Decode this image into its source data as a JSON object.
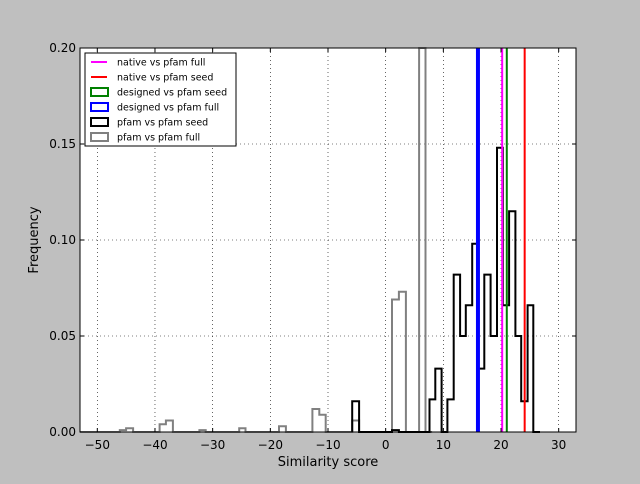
{
  "chart_data": {
    "type": "histogram",
    "xlabel": "Similarity score",
    "ylabel": "Frequency",
    "xlim": [
      -53,
      33
    ],
    "ylim": [
      0,
      0.2
    ],
    "xticks": [
      -50,
      -40,
      -30,
      -20,
      -10,
      0,
      10,
      20,
      30
    ],
    "xtick_labels": [
      "−50",
      "−40",
      "−30",
      "−20",
      "−10",
      "0",
      "10",
      "20",
      "30"
    ],
    "yticks": [
      0,
      0.05,
      0.1,
      0.15,
      0.2
    ],
    "ytick_labels": [
      "0.00",
      "0.05",
      "0.10",
      "0.15",
      "0.20"
    ],
    "grid": true,
    "legend_position": "top-left",
    "legend": [
      {
        "label": "native vs pfam full",
        "color": "#ff00ff",
        "kind": "line"
      },
      {
        "label": "native vs pfam seed",
        "color": "#ff0000",
        "kind": "line"
      },
      {
        "label": "designed vs pfam seed",
        "color": "#008000",
        "kind": "box"
      },
      {
        "label": "designed vs pfam full",
        "color": "#0000ff",
        "kind": "box"
      },
      {
        "label": "pfam vs pfam seed",
        "color": "#000000",
        "kind": "box"
      },
      {
        "label": "pfam vs pfam full",
        "color": "#808080",
        "kind": "box"
      }
    ],
    "series": [
      {
        "name": "pfam vs pfam full",
        "color": "#808080",
        "bin_width": 1.15,
        "bins": [
          [
            -53.0,
            0.0
          ],
          [
            -46.1,
            0.001
          ],
          [
            -45.0,
            0.002
          ],
          [
            -43.8,
            0.0
          ],
          [
            -39.2,
            0.004
          ],
          [
            -38.1,
            0.006
          ],
          [
            -36.9,
            0.0
          ],
          [
            -32.3,
            0.001
          ],
          [
            -31.2,
            0.0
          ],
          [
            -25.4,
            0.002
          ],
          [
            -24.3,
            0.0
          ],
          [
            -18.5,
            0.003
          ],
          [
            -17.3,
            0.0
          ],
          [
            -12.7,
            0.012
          ],
          [
            -11.5,
            0.009
          ],
          [
            -10.4,
            0.0
          ],
          [
            -5.8,
            0.006
          ],
          [
            -4.6,
            0.0
          ],
          [
            1.1,
            0.069
          ],
          [
            2.3,
            0.073
          ],
          [
            3.5,
            0.0
          ],
          [
            5.8,
            0.2
          ],
          [
            6.9,
            0.0
          ]
        ]
      },
      {
        "name": "pfam vs pfam seed",
        "color": "#000000",
        "bin_width": 1.15,
        "bins": [
          [
            -5.8,
            0.016
          ],
          [
            -4.6,
            0.0
          ],
          [
            1.1,
            0.001
          ],
          [
            2.3,
            0.0
          ],
          [
            7.6,
            0.017
          ],
          [
            8.6,
            0.033
          ],
          [
            9.7,
            0.0
          ],
          [
            10.7,
            0.017
          ],
          [
            11.8,
            0.082
          ],
          [
            12.9,
            0.05
          ],
          [
            13.9,
            0.066
          ],
          [
            15.0,
            0.098
          ],
          [
            16.1,
            0.033
          ],
          [
            17.1,
            0.082
          ],
          [
            18.2,
            0.05
          ],
          [
            19.3,
            0.148
          ],
          [
            20.3,
            0.066
          ],
          [
            21.4,
            0.115
          ],
          [
            22.5,
            0.05
          ],
          [
            23.5,
            0.016
          ],
          [
            24.6,
            0.066
          ],
          [
            25.6,
            0.0
          ]
        ]
      }
    ],
    "vertical_lines": [
      {
        "name": "designed vs pfam full",
        "x": 16.0,
        "color": "#0000ff",
        "width": 4
      },
      {
        "name": "native vs pfam full",
        "x": 20.2,
        "color": "#ff00ff",
        "width": 2
      },
      {
        "name": "designed vs pfam seed",
        "x": 21.0,
        "color": "#008000",
        "width": 2
      },
      {
        "name": "native vs pfam seed",
        "x": 24.1,
        "color": "#ff0000",
        "width": 2
      }
    ]
  }
}
